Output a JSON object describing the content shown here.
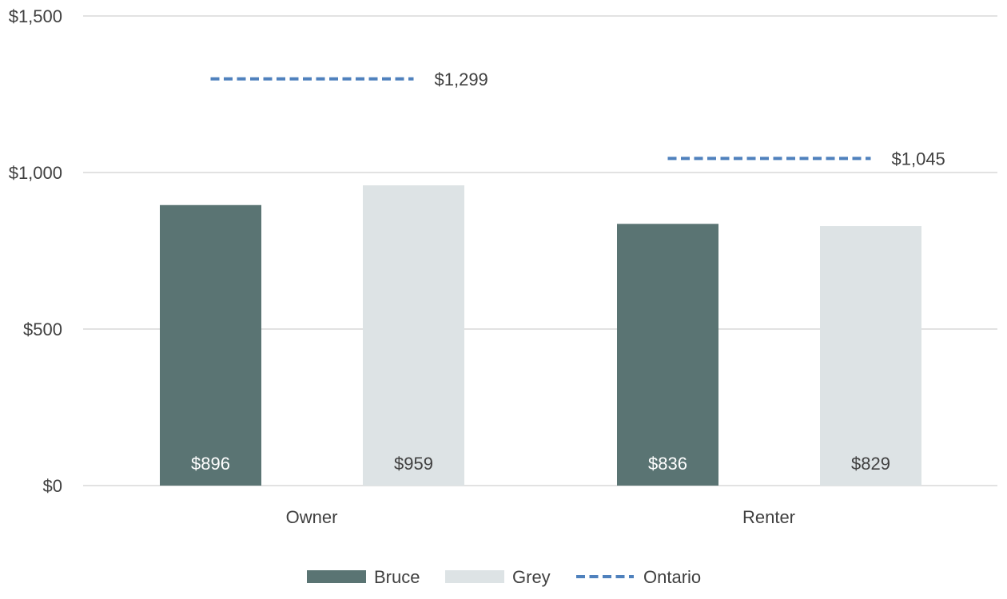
{
  "chart_data": {
    "type": "bar",
    "title": "",
    "xlabel": "",
    "ylabel": "",
    "ylim": [
      0,
      1500
    ],
    "yticks": [
      0,
      500,
      1000,
      1500
    ],
    "ytick_labels": [
      "$0",
      "$500",
      "$1,000",
      "$1,500"
    ],
    "grid": true,
    "legend_position": "bottom",
    "categories": [
      "Owner",
      "Renter"
    ],
    "series": [
      {
        "name": "Bruce",
        "type": "bar",
        "values": [
          896,
          836
        ],
        "labels": [
          "$896",
          "$836"
        ],
        "color": "#5a7473",
        "label_color": "#ffffff"
      },
      {
        "name": "Grey",
        "type": "bar",
        "values": [
          959,
          829
        ],
        "labels": [
          "$959",
          "$829"
        ],
        "color": "#dde3e5",
        "label_color": "#404040"
      },
      {
        "name": "Ontario",
        "type": "line",
        "style": "dashed",
        "values": [
          1299,
          1045
        ],
        "labels": [
          "$1,299",
          "$1,045"
        ],
        "color": "#4f81bd",
        "label_color": "#404040"
      }
    ]
  }
}
